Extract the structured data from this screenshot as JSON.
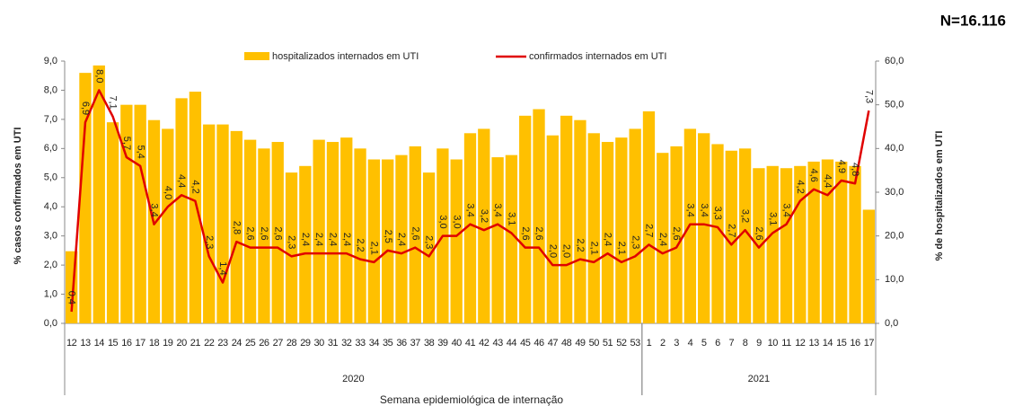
{
  "chart_data": {
    "type": "combo",
    "title": "N=16.116",
    "y_label": "% casos confirmados  em UTI",
    "y2_label": "% de hospitalizados  em UTI",
    "x_label": "Semana epidemiológica de internação",
    "category_groups": [
      {
        "label": "2020",
        "categories": [
          "12",
          "13",
          "14",
          "15",
          "16",
          "17",
          "18",
          "19",
          "20",
          "21",
          "22",
          "23",
          "24",
          "25",
          "26",
          "27",
          "28",
          "29",
          "30",
          "31",
          "32",
          "33",
          "34",
          "35",
          "36",
          "37",
          "38",
          "39",
          "40",
          "41",
          "42",
          "43",
          "44",
          "45",
          "46",
          "47",
          "48",
          "49",
          "50",
          "51",
          "52",
          "53"
        ]
      },
      {
        "label": "2021",
        "categories": [
          "1",
          "2",
          "3",
          "4",
          "5",
          "6",
          "7",
          "8",
          "9",
          "10",
          "11",
          "12",
          "13",
          "14",
          "15",
          "16",
          "17"
        ]
      }
    ],
    "ylim": [
      0,
      9
    ],
    "yticks": [
      {
        "value": 0,
        "label": "0,0"
      },
      {
        "value": 1,
        "label": "1,0"
      },
      {
        "value": 2,
        "label": "2,0"
      },
      {
        "value": 3,
        "label": "3,0"
      },
      {
        "value": 4,
        "label": "4,0"
      },
      {
        "value": 5,
        "label": "5,0"
      },
      {
        "value": 6,
        "label": "6,0"
      },
      {
        "value": 7,
        "label": "7,0"
      },
      {
        "value": 8,
        "label": "8,0"
      },
      {
        "value": 9,
        "label": "9,0"
      }
    ],
    "y2lim": [
      0,
      60
    ],
    "y2ticks": [
      {
        "value": 0,
        "label": "0,0"
      },
      {
        "value": 10,
        "label": "10,0"
      },
      {
        "value": 20,
        "label": "20,0"
      },
      {
        "value": 30,
        "label": "30,0"
      },
      {
        "value": 40,
        "label": "40,0"
      },
      {
        "value": 50,
        "label": "50,0"
      },
      {
        "value": 60,
        "label": "60,0"
      }
    ],
    "series": [
      {
        "name": "hospitalizados internados em UTI",
        "type": "bar",
        "axis": "y2",
        "color": "#ffc000",
        "values": [
          16.5,
          57.3,
          59,
          46,
          50,
          50,
          46.5,
          44.5,
          51.5,
          53,
          45.5,
          45.5,
          44,
          42,
          40,
          41.5,
          34.5,
          36,
          42,
          41.5,
          42.5,
          40,
          37.5,
          37.5,
          38.5,
          40.5,
          34.5,
          40,
          37.5,
          43.5,
          44.5,
          38,
          38.5,
          47.5,
          49,
          43,
          47.5,
          46.5,
          43.5,
          41.5,
          42.5,
          44.5,
          48.5,
          39,
          40.5,
          44.5,
          43.5,
          41,
          39.5,
          40,
          35.5,
          36,
          35.5,
          36,
          37,
          37.5,
          37,
          36,
          26
        ]
      },
      {
        "name": "confirmados internados em UTI",
        "type": "line",
        "axis": "y",
        "color": "#e00000",
        "values": [
          0.4,
          6.9,
          8.0,
          7.1,
          5.7,
          5.4,
          3.4,
          4.0,
          4.4,
          4.2,
          2.3,
          1.4,
          2.8,
          2.6,
          2.6,
          2.6,
          2.3,
          2.4,
          2.4,
          2.4,
          2.4,
          2.2,
          2.1,
          2.5,
          2.4,
          2.6,
          2.3,
          3.0,
          3.0,
          3.4,
          3.2,
          3.4,
          3.1,
          2.6,
          2.6,
          2.0,
          2.0,
          2.2,
          2.1,
          2.4,
          2.1,
          2.3,
          2.7,
          2.4,
          2.6,
          3.4,
          3.4,
          3.3,
          2.7,
          3.2,
          2.6,
          3.1,
          3.4,
          4.2,
          4.6,
          4.4,
          4.9,
          4.8,
          7.3
        ],
        "value_labels": [
          "0,4",
          "6,9",
          "8,0",
          "7,1",
          "5,7",
          "5,4",
          "3,4",
          "4,0",
          "4,4",
          "4,2",
          "2,3",
          "1,4",
          "2,8",
          "2,6",
          "2,6",
          "2,6",
          "2,3",
          "2,4",
          "2,4",
          "2,4",
          "2,4",
          "2,2",
          "2,1",
          "2,5",
          "2,4",
          "2,6",
          "2,3",
          "3,0",
          "3,0",
          "3,4",
          "3,2",
          "3,4",
          "3,1",
          "2,6",
          "2,6",
          "2,0",
          "2,0",
          "2,2",
          "2,1",
          "2,4",
          "2,1",
          "2,3",
          "2,7",
          "2,4",
          "2,6",
          "3,4",
          "3,4",
          "3,3",
          "2,7",
          "3,2",
          "2,6",
          "3,1",
          "3,4",
          "4,2",
          "4,6",
          "4,4",
          "4,9",
          "4,8",
          "7,3"
        ]
      }
    ]
  }
}
